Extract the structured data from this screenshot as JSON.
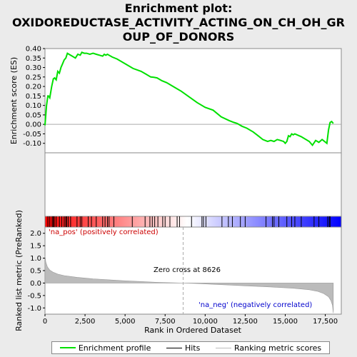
{
  "title_line1": "Enrichment plot:",
  "title_line2": "OXIDOREDUCTASE_ACTIVITY_ACTING_ON_CH_OH_GR",
  "title_line3": "OUP_OF_DONORS",
  "legend": [
    {
      "label": "Enrichment profile",
      "color": "#00e000"
    },
    {
      "label": "Hits",
      "color": "#000000"
    },
    {
      "label": "Ranking metric scores",
      "color": "#bbbbbb"
    }
  ],
  "chart_data": [
    {
      "type": "line",
      "panel": "enrichment",
      "ylabel": "Enrichment score (ES)",
      "xlim": [
        0,
        18500
      ],
      "ylim": [
        -0.15,
        0.4
      ],
      "yticks": [
        -0.1,
        -0.05,
        0.0,
        0.05,
        0.1,
        0.15,
        0.2,
        0.25,
        0.3,
        0.35,
        0.4
      ],
      "ytick_labels": [
        "-0.10",
        "-0.05",
        "0.00",
        "0.05",
        "0.10",
        "0.15",
        "0.20",
        "0.25",
        "0.30",
        "0.35",
        "0.40"
      ],
      "series": [
        {
          "name": "Enrichment profile",
          "color": "#00e000",
          "x": [
            0,
            100,
            180,
            220,
            300,
            420,
            520,
            600,
            700,
            800,
            900,
            1000,
            1100,
            1200,
            1300,
            1400,
            1500,
            1700,
            1900,
            2050,
            2200,
            2300,
            2450,
            2600,
            2800,
            3000,
            3200,
            3400,
            3600,
            3700,
            3800,
            3900,
            4000,
            4200,
            4500,
            5000,
            5500,
            6000,
            6300,
            6600,
            6800,
            7000,
            7300,
            7600,
            8000,
            8500,
            9000,
            9500,
            10000,
            10500,
            11000,
            11500,
            11800,
            12000,
            12300,
            12600,
            13000,
            13300,
            13600,
            13900,
            14100,
            14300,
            14500,
            14700,
            14900,
            15000,
            15100,
            15200,
            15300,
            15400,
            15500,
            15600,
            16000,
            16500,
            16700,
            16900,
            17100,
            17300,
            17600,
            17700,
            17800,
            17900,
            18000
          ],
          "y": [
            -0.005,
            0.1,
            0.15,
            0.15,
            0.14,
            0.2,
            0.24,
            0.245,
            0.235,
            0.28,
            0.27,
            0.3,
            0.32,
            0.34,
            0.35,
            0.375,
            0.37,
            0.36,
            0.35,
            0.37,
            0.365,
            0.38,
            0.375,
            0.375,
            0.37,
            0.375,
            0.37,
            0.365,
            0.36,
            0.37,
            0.365,
            0.37,
            0.365,
            0.355,
            0.345,
            0.32,
            0.295,
            0.28,
            0.265,
            0.25,
            0.248,
            0.245,
            0.23,
            0.22,
            0.2,
            0.175,
            0.145,
            0.115,
            0.09,
            0.075,
            0.04,
            0.02,
            0.01,
            0.005,
            -0.01,
            -0.02,
            -0.04,
            -0.06,
            -0.08,
            -0.09,
            -0.085,
            -0.09,
            -0.08,
            -0.085,
            -0.09,
            -0.1,
            -0.09,
            -0.06,
            -0.065,
            -0.05,
            -0.055,
            -0.05,
            -0.065,
            -0.09,
            -0.11,
            -0.085,
            -0.095,
            -0.08,
            -0.1,
            -0.03,
            0.01,
            0.015,
            0.005
          ]
        }
      ]
    },
    {
      "type": "scatter",
      "panel": "hits",
      "name": "Hits",
      "color": "#000000",
      "x": [
        180,
        300,
        450,
        520,
        580,
        700,
        900,
        1050,
        1200,
        1300,
        1350,
        1450,
        1600,
        2000,
        2200,
        2300,
        2700,
        2900,
        3200,
        3600,
        3750,
        3900,
        4000,
        4300,
        5450,
        6250,
        6550,
        6700,
        6850,
        7050,
        7350,
        7500,
        7800,
        8250,
        8400,
        9150,
        9800,
        9900,
        10050,
        11050,
        11450,
        11700,
        12200,
        12500,
        13800,
        14200,
        14300,
        14600,
        15100,
        15400,
        15600,
        16000,
        16800,
        17100,
        17650,
        17750,
        17800
      ],
      "gradient_bar": {
        "colors": [
          "#ff0000",
          "#ffffff",
          "#0000ff"
        ]
      }
    },
    {
      "type": "area",
      "panel": "ranking",
      "name": "Ranking metric scores",
      "xlabel": "Rank in Ordered Dataset",
      "ylabel": "Ranked list metric (PreRanked)",
      "xlim": [
        0,
        18500
      ],
      "ylim": [
        -1.25,
        2.25
      ],
      "xticks": [
        0,
        2500,
        5000,
        7500,
        10000,
        12500,
        15000,
        17500
      ],
      "xtick_labels": [
        "0",
        "2,500",
        "5,000",
        "7,500",
        "10,000",
        "12,500",
        "15,000",
        "17,500"
      ],
      "yticks": [
        -1.0,
        -0.5,
        0.0,
        0.5,
        1.0,
        1.5,
        2.0
      ],
      "ytick_labels": [
        "-1.0",
        "-0.5",
        "0.0",
        "0.5",
        "1.0",
        "1.5",
        "2.0"
      ],
      "color": "#bbbbbb",
      "x": [
        0,
        50,
        150,
        300,
        500,
        800,
        1200,
        2000,
        3000,
        4000,
        5000,
        6000,
        7000,
        8000,
        8626,
        9500,
        10500,
        11500,
        12500,
        13500,
        14500,
        15500,
        16500,
        17000,
        17400,
        17700,
        17850,
        17950,
        18000
      ],
      "y": [
        1.1,
        0.85,
        0.65,
        0.52,
        0.44,
        0.36,
        0.3,
        0.23,
        0.17,
        0.13,
        0.09,
        0.06,
        0.03,
        0.01,
        0.0,
        -0.02,
        -0.05,
        -0.08,
        -0.11,
        -0.14,
        -0.17,
        -0.21,
        -0.27,
        -0.33,
        -0.42,
        -0.55,
        -0.7,
        -0.9,
        -1.2
      ],
      "zero_cross": 8626,
      "annotations": {
        "pos": "'na_pos' (positively correlated)",
        "neg": "'na_neg' (negatively correlated)",
        "zero": "Zero cross at 8626"
      }
    }
  ]
}
